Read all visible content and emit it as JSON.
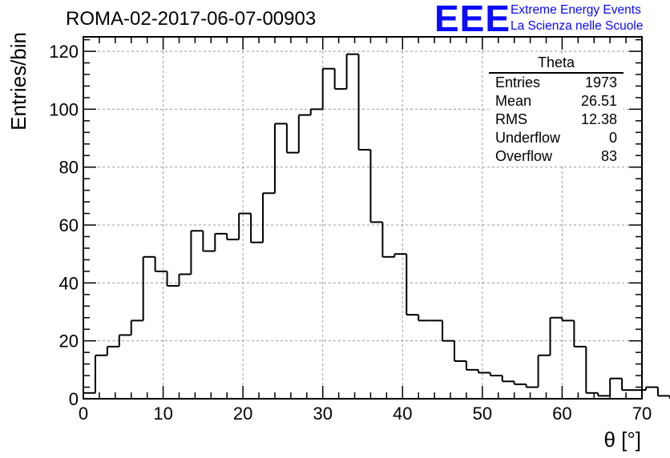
{
  "header": {
    "title": "ROMA-02-2017-06-07-00903",
    "logo_text": "EEE",
    "logo_line1": "Extreme Energy Events",
    "logo_line2": "La Scienza nelle Scuole"
  },
  "stats_box": {
    "title": "Theta",
    "rows": [
      {
        "label": "Entries",
        "value": "1973"
      },
      {
        "label": "Mean",
        "value": "26.51"
      },
      {
        "label": "RMS",
        "value": "12.38"
      },
      {
        "label": "Underflow",
        "value": "0"
      },
      {
        "label": "Overflow",
        "value": "83"
      }
    ]
  },
  "colors": {
    "line": "#000000",
    "grid": "#999999",
    "logo": "#0a0aff"
  },
  "chart_data": {
    "type": "histogram",
    "xlabel": "θ [°]",
    "ylabel": "Entries/bin",
    "xlim": [
      0,
      70
    ],
    "ylim": [
      0,
      125
    ],
    "grid": true,
    "xticks": [
      0,
      10,
      20,
      30,
      40,
      50,
      60,
      70
    ],
    "yticks": [
      0,
      20,
      40,
      60,
      80,
      100,
      120
    ],
    "bin_width": 1.5,
    "bin_edges_start": 0,
    "values": [
      2,
      15,
      18,
      22,
      27,
      49,
      44,
      39,
      43,
      58,
      51,
      57,
      55,
      64,
      54,
      71,
      95,
      85,
      98,
      100,
      114,
      107,
      119,
      86,
      61,
      49,
      50,
      29,
      27,
      27,
      20,
      13,
      10,
      9,
      8,
      6,
      5,
      4,
      15,
      28,
      27,
      18,
      2,
      1,
      7,
      3,
      3,
      4,
      1
    ]
  }
}
